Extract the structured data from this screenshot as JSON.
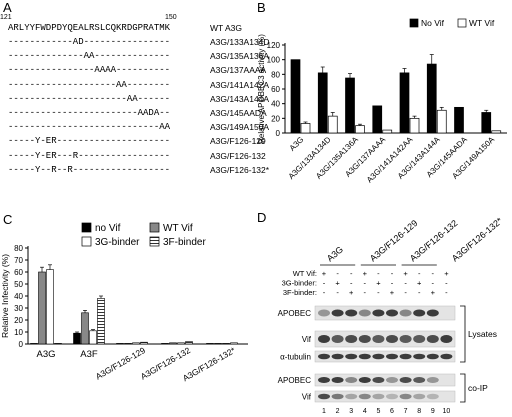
{
  "panels": {
    "a": {
      "letter": "A",
      "start_pos": "121",
      "end_pos": "150",
      "wt_sequence": "ARLYYFWDPDYQEALRSLCQKRDGPRATMK",
      "wt_label": "WT A3G",
      "rows": [
        {
          "seq": "------------AD----------------",
          "label": "A3G/133A134D"
        },
        {
          "seq": "--------------AA--------------",
          "label": "A3G/135A136A"
        },
        {
          "seq": "----------------AAAA----------",
          "label": "A3G/137AAAA"
        },
        {
          "seq": "--------------------AA--------",
          "label": "A3G/141A142A"
        },
        {
          "seq": "----------------------AA------",
          "label": "A3G/143A144A"
        },
        {
          "seq": "------------------------AADA--",
          "label": "A3G/145AADA"
        },
        {
          "seq": "----------------------------AA",
          "label": "A3G/149A150A"
        },
        {
          "seq": "-----Y-ER---------------------",
          "label": "A3G/F126-129"
        },
        {
          "seq": "-----Y-ER---R-----------------",
          "label": "A3G/F126-132"
        },
        {
          "seq": "-----Y--R--R------------------",
          "label": "A3G/F126-132*"
        }
      ]
    },
    "b": {
      "letter": "B"
    },
    "c": {
      "letter": "C"
    },
    "d": {
      "letter": "D",
      "group_labels": [
        "A3G",
        "A3G/F126-129",
        "A3G/F126-132",
        "A3G/F126-132*"
      ],
      "treat_labels": [
        "WT Vif",
        "3G-binder",
        "3F-binder"
      ],
      "treat_rows": [
        [
          "+",
          "-",
          "-",
          "+",
          "-",
          "-",
          "+",
          "-",
          "-",
          "+"
        ],
        [
          "-",
          "+",
          "-",
          "-",
          "+",
          "-",
          "-",
          "+",
          "-",
          "-"
        ],
        [
          "-",
          "-",
          "+",
          "-",
          "-",
          "+",
          "-",
          "-",
          "+",
          "-"
        ]
      ],
      "blot_labels": {
        "apobec_lys": "APOBEC",
        "vif_lys": "Vif",
        "tubulin": "α-tubulin",
        "apobec_ip": "APOBEC",
        "vif_ip": "Vif"
      },
      "side_labels": {
        "lysates": "Lysates",
        "coip": "co-IP"
      },
      "lane_numbers": [
        "1",
        "2",
        "3",
        "4",
        "5",
        "6",
        "7",
        "8",
        "9",
        "10"
      ]
    }
  },
  "chart_data": [
    {
      "type": "bar",
      "panel": "B",
      "ylabel": "Relative APOBEC3 activity (%)",
      "ylim": [
        0,
        120
      ],
      "yticks": [
        "0",
        "20",
        "40",
        "60",
        "80",
        "100",
        "120"
      ],
      "categories": [
        "A3G",
        "A3G/133A134D",
        "A3G/135A136A",
        "A3G/137AAAA",
        "A3G/141A142AA",
        "A3G/143A144A",
        "A3G/145AADA",
        "A3G/149A150A"
      ],
      "series": [
        {
          "name": "No Vif",
          "color": "#000000",
          "values": [
            100,
            82,
            75,
            37,
            82,
            94,
            35,
            28
          ],
          "errors": [
            0,
            8,
            6,
            0,
            6,
            13,
            0,
            3
          ]
        },
        {
          "name": "WT Vif",
          "color": "#ffffff",
          "values": [
            13,
            23,
            10,
            4,
            20,
            31,
            0,
            3
          ],
          "errors": [
            2,
            5,
            2,
            0,
            3,
            4,
            0,
            0
          ]
        }
      ],
      "legend": "top-right"
    },
    {
      "type": "bar",
      "panel": "C",
      "ylabel": "Relative Infectivity (%)",
      "ylim": [
        0,
        80
      ],
      "yticks": [
        "0",
        "10",
        "20",
        "30",
        "40",
        "50",
        "60",
        "70",
        "80"
      ],
      "categories": [
        "A3G",
        "A3F",
        "A3G/F126-129",
        "A3G/F126-132",
        "A3G/F126-132*"
      ],
      "series": [
        {
          "name": "no Vif",
          "color": "#000000",
          "pattern": "solid",
          "values": [
            0.5,
            9,
            0.5,
            0.5,
            0.5
          ],
          "errors": [
            0,
            1,
            0,
            0,
            0
          ]
        },
        {
          "name": "WT Vif",
          "color": "#888888",
          "pattern": "solid",
          "values": [
            60,
            26,
            0.5,
            1,
            0.5
          ],
          "errors": [
            4,
            2,
            0,
            0,
            0
          ]
        },
        {
          "name": "3G-binder",
          "color": "#ffffff",
          "pattern": "solid",
          "values": [
            62,
            11,
            1,
            1,
            0.5
          ],
          "errors": [
            4,
            1,
            0,
            0,
            0
          ]
        },
        {
          "name": "3F-binder",
          "color": "#ffffff",
          "pattern": "hlines",
          "values": [
            0.5,
            38,
            1.5,
            2,
            1
          ],
          "errors": [
            0,
            2,
            0,
            0,
            0
          ]
        }
      ],
      "legend": "top-right"
    }
  ]
}
